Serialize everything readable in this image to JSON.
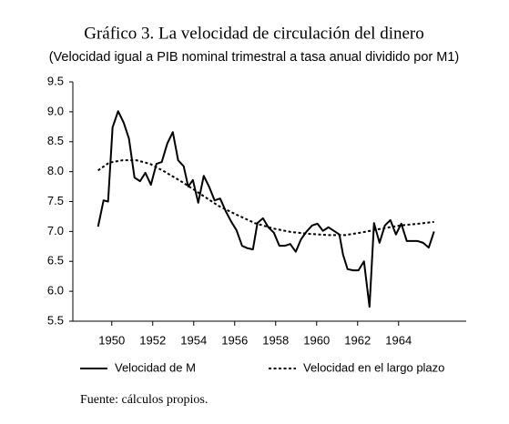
{
  "chart_data": {
    "type": "line",
    "title": "Gráfico 3. La velocidad de circulación del dinero",
    "subtitle": "(Velocidad igual a PIB nominal trimestral a tasa anual dividido por M1)",
    "note": "Fuente: cálculos propios.",
    "xlim": [
      1948.1,
      1967.3
    ],
    "xticks": [
      1950,
      1952,
      1954,
      1956,
      1958,
      1960,
      1962,
      1964
    ],
    "ylim": [
      5.5,
      9.5
    ],
    "yticks": [
      5.5,
      {
        "value": 6,
        "label": "6.0"
      },
      6.5,
      {
        "value": 7,
        "label": "7.0"
      },
      7.5,
      {
        "value": 8,
        "label": "8.0"
      },
      8.5,
      {
        "value": 9,
        "label": "9.0"
      },
      9.5
    ],
    "grid": false,
    "legend": "bottom",
    "series": [
      {
        "name": "Velocidad de M",
        "color": "#000000",
        "dash": false,
        "x": [
          1949.33,
          1949.6,
          1949.82,
          1950.04,
          1950.31,
          1950.58,
          1950.84,
          1951.11,
          1951.38,
          1951.64,
          1951.91,
          1952.18,
          1952.44,
          1952.71,
          1952.98,
          1953.24,
          1953.51,
          1953.73,
          1953.96,
          1954.22,
          1954.49,
          1954.76,
          1955.02,
          1955.29,
          1955.56,
          1955.82,
          1956.09,
          1956.36,
          1956.62,
          1956.89,
          1957.11,
          1957.38,
          1957.64,
          1957.91,
          1958.18,
          1958.44,
          1958.71,
          1958.98,
          1959.24,
          1959.51,
          1959.78,
          1960.04,
          1960.31,
          1960.58,
          1960.84,
          1961.11,
          1961.29,
          1961.51,
          1961.78,
          1962.04,
          1962.31,
          1962.58,
          1962.8,
          1963.07,
          1963.33,
          1963.6,
          1963.87,
          1964.13,
          1964.4,
          1964.67,
          1964.93,
          1965.2,
          1965.47,
          1965.73
        ],
        "values": [
          7.08,
          7.52,
          7.5,
          8.74,
          9.01,
          8.82,
          8.55,
          7.9,
          7.84,
          7.98,
          7.78,
          8.13,
          8.16,
          8.47,
          8.66,
          8.19,
          8.09,
          7.75,
          7.86,
          7.48,
          7.93,
          7.74,
          7.52,
          7.55,
          7.34,
          7.17,
          7.02,
          6.76,
          6.72,
          6.7,
          7.14,
          7.22,
          7.07,
          6.98,
          6.76,
          6.76,
          6.79,
          6.66,
          6.87,
          7.0,
          7.1,
          7.13,
          7.01,
          7.07,
          7.01,
          6.95,
          6.61,
          6.37,
          6.35,
          6.35,
          6.5,
          5.74,
          7.14,
          6.81,
          7.1,
          7.19,
          6.95,
          7.13,
          6.84,
          6.84,
          6.84,
          6.81,
          6.73,
          7.0
        ]
      },
      {
        "name": "Velocidad en el largo plazo",
        "color": "#000000",
        "dash": true,
        "x": [
          1949.33,
          1949.87,
          1950.53,
          1951.2,
          1951.87,
          1952.53,
          1953.42,
          1954.31,
          1955.2,
          1956.09,
          1956.98,
          1957.87,
          1958.76,
          1959.64,
          1960.53,
          1961.42,
          1962.31,
          1963.2,
          1964.09,
          1964.98,
          1965.73
        ],
        "values": [
          8.02,
          8.15,
          8.19,
          8.19,
          8.13,
          8.01,
          7.83,
          7.63,
          7.43,
          7.28,
          7.14,
          7.05,
          6.99,
          6.96,
          6.94,
          6.94,
          6.99,
          7.05,
          7.1,
          7.13,
          7.16
        ]
      }
    ]
  }
}
